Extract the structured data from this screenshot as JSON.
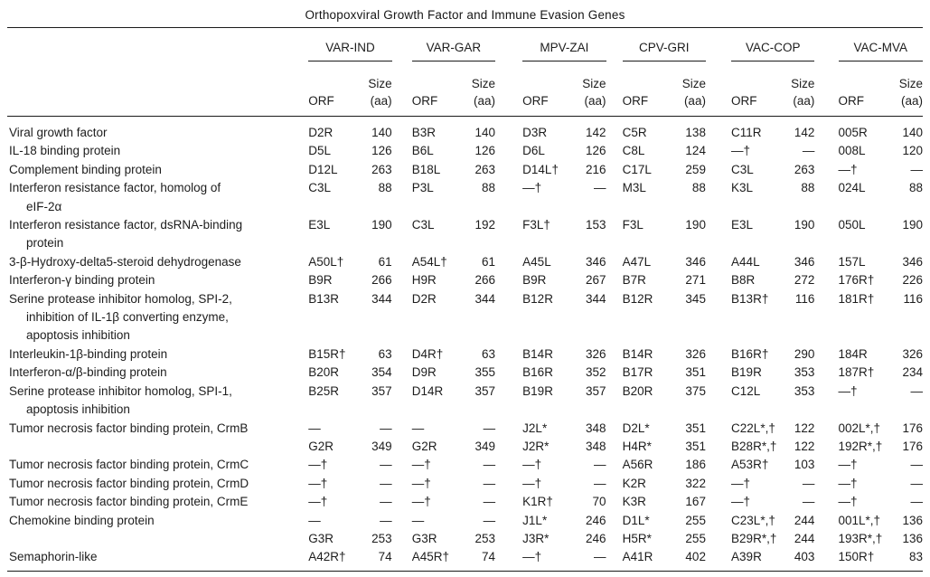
{
  "table": {
    "title": "Orthopoxviral Growth Factor and Immune Evasion Genes",
    "groups": [
      "VAR-IND",
      "VAR-GAR",
      "MPV-ZAI",
      "CPV-GRI",
      "VAC-COP",
      "VAC-MVA"
    ],
    "subheaders": {
      "orf": "ORF",
      "size_line1": "Size",
      "size_line2": "(aa)"
    },
    "rows": [
      {
        "label": [
          "Viral growth factor"
        ],
        "cells": [
          "D2R",
          "140",
          "B3R",
          "140",
          "D3R",
          "142",
          "C5R",
          "138",
          "C11R",
          "142",
          "005R",
          "140"
        ]
      },
      {
        "label": [
          "IL-18 binding protein"
        ],
        "cells": [
          "D5L",
          "126",
          "B6L",
          "126",
          "D6L",
          "126",
          "C8L",
          "124",
          "—†",
          "—",
          "008L",
          "120"
        ]
      },
      {
        "label": [
          "Complement binding protein"
        ],
        "cells": [
          "D12L",
          "263",
          "B18L",
          "263",
          "D14L†",
          "216",
          "C17L",
          "259",
          "C3L",
          "263",
          "—†",
          "—"
        ]
      },
      {
        "label": [
          "Interferon resistance factor, homolog of",
          "eIF-2α"
        ],
        "cells": [
          "C3L",
          "88",
          "P3L",
          "88",
          "—†",
          "—",
          "M3L",
          "88",
          "K3L",
          "88",
          "024L",
          "88"
        ]
      },
      {
        "label": [
          "Interferon resistance factor, dsRNA-binding",
          "protein"
        ],
        "cells": [
          "E3L",
          "190",
          "C3L",
          "192",
          "F3L†",
          "153",
          "F3L",
          "190",
          "E3L",
          "190",
          "050L",
          "190"
        ]
      },
      {
        "label": [
          "3-β-Hydroxy-delta5-steroid dehydrogenase"
        ],
        "cells": [
          "A50L†",
          "61",
          "A54L†",
          "61",
          "A45L",
          "346",
          "A47L",
          "346",
          "A44L",
          "346",
          "157L",
          "346"
        ]
      },
      {
        "label": [
          "Interferon-γ binding protein"
        ],
        "cells": [
          "B9R",
          "266",
          "H9R",
          "266",
          "B9R",
          "267",
          "B7R",
          "271",
          "B8R",
          "272",
          "176R†",
          "226"
        ]
      },
      {
        "label": [
          "Serine protease inhibitor homolog, SPI-2,",
          "inhibition of IL-1β converting enzyme,",
          "apoptosis inhibition"
        ],
        "cells": [
          "B13R",
          "344",
          "D2R",
          "344",
          "B12R",
          "344",
          "B12R",
          "345",
          "B13R†",
          "116",
          "181R†",
          "116"
        ]
      },
      {
        "label": [
          "Interleukin-1β-binding protein"
        ],
        "cells": [
          "B15R†",
          "63",
          "D4R†",
          "63",
          "B14R",
          "326",
          "B14R",
          "326",
          "B16R†",
          "290",
          "184R",
          "326"
        ]
      },
      {
        "label": [
          "Interferon-α/β-binding protein"
        ],
        "cells": [
          "B20R",
          "354",
          "D9R",
          "355",
          "B16R",
          "352",
          "B17R",
          "351",
          "B19R",
          "353",
          "187R†",
          "234"
        ]
      },
      {
        "label": [
          "Serine protease inhibitor homolog, SPI-1,",
          "apoptosis inhibition"
        ],
        "cells": [
          "B25R",
          "357",
          "D14R",
          "357",
          "B19R",
          "357",
          "B20R",
          "375",
          "C12L",
          "353",
          "—†",
          "—"
        ]
      },
      {
        "label": [
          "Tumor necrosis factor binding protein, CrmB"
        ],
        "cells": [
          "—",
          "—",
          "—",
          "—",
          "J2L*",
          "348",
          "D2L*",
          "351",
          "C22L*,†",
          "122",
          "002L*,†",
          "176"
        ]
      },
      {
        "label": [
          ""
        ],
        "cells": [
          "G2R",
          "349",
          "G2R",
          "349",
          "J2R*",
          "348",
          "H4R*",
          "351",
          "B28R*,†",
          "122",
          "192R*,†",
          "176"
        ]
      },
      {
        "label": [
          "Tumor necrosis factor binding protein, CrmC"
        ],
        "cells": [
          "—†",
          "—",
          "—†",
          "—",
          "—†",
          "—",
          "A56R",
          "186",
          "A53R†",
          "103",
          "—†",
          "—"
        ]
      },
      {
        "label": [
          "Tumor necrosis factor binding protein, CrmD"
        ],
        "cells": [
          "—†",
          "—",
          "—†",
          "—",
          "—†",
          "—",
          "K2R",
          "322",
          "—†",
          "—",
          "—†",
          "—"
        ]
      },
      {
        "label": [
          "Tumor necrosis factor binding protein, CrmE"
        ],
        "cells": [
          "—†",
          "—",
          "—†",
          "—",
          "K1R†",
          "70",
          "K3R",
          "167",
          "—†",
          "—",
          "—†",
          "—"
        ]
      },
      {
        "label": [
          "Chemokine binding protein"
        ],
        "cells": [
          "—",
          "—",
          "—",
          "—",
          "J1L*",
          "246",
          "D1L*",
          "255",
          "C23L*,†",
          "244",
          "001L*,†",
          "136"
        ]
      },
      {
        "label": [
          ""
        ],
        "cells": [
          "G3R",
          "253",
          "G3R",
          "253",
          "J3R*",
          "246",
          "H5R*",
          "255",
          "B29R*,†",
          "244",
          "193R*,†",
          "136"
        ]
      },
      {
        "label": [
          "Semaphorin-like"
        ],
        "cells": [
          "A42R†",
          "74",
          "A45R†",
          "74",
          "—†",
          "—",
          "A41R",
          "402",
          "A39R",
          "403",
          "150R†",
          "83"
        ]
      }
    ]
  }
}
